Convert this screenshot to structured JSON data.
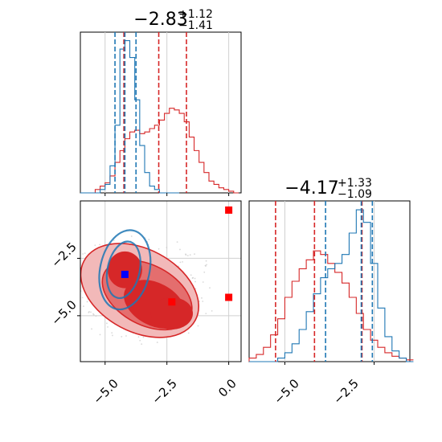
{
  "chart_data": {
    "type": "corner",
    "colors": {
      "red": "#d62728",
      "blue": "#1f77b4",
      "grid": "#d0d0d0",
      "light_red": "#f2b9b9",
      "mid_red": "#e46e6e"
    },
    "panels": {
      "hist_x": {
        "title": {
          "main": "−2.83",
          "sup": "+1.12",
          "sub": "−1.41"
        },
        "xlim": [
          -6.0,
          0.5
        ],
        "vlines": {
          "red": [
            -4.24,
            -2.83,
            -1.71
          ],
          "blue": [
            -4.6,
            -4.2,
            -3.75
          ]
        },
        "series": [
          {
            "name": "",
            "color": "#d62728",
            "x": [
              -6.0,
              -5.8,
              -5.6,
              -5.4,
              -5.2,
              -5.0,
              -4.8,
              -4.6,
              -4.4,
              -4.2,
              -4.0,
              -3.8,
              -3.6,
              -3.4,
              -3.2,
              -3.0,
              -2.8,
              -2.6,
              -2.4,
              -2.2,
              -2.0,
              -1.8,
              -1.6,
              -1.4,
              -1.2,
              -1.0,
              -0.8,
              -0.6,
              -0.4,
              -0.2,
              0.0,
              0.2
            ],
            "y": [
              0.0,
              0.0,
              0.0,
              0.02,
              0.04,
              0.06,
              0.1,
              0.18,
              0.25,
              0.32,
              0.36,
              0.37,
              0.35,
              0.36,
              0.38,
              0.4,
              0.43,
              0.47,
              0.5,
              0.49,
              0.47,
              0.42,
              0.33,
              0.25,
              0.18,
              0.12,
              0.07,
              0.05,
              0.03,
              0.02,
              0.01,
              0.0
            ]
          },
          {
            "name": "",
            "color": "#1f77b4",
            "x": [
              -6.0,
              -5.8,
              -5.6,
              -5.4,
              -5.2,
              -5.0,
              -4.8,
              -4.6,
              -4.4,
              -4.2,
              -4.0,
              -3.8,
              -3.6,
              -3.4,
              -3.2,
              -3.0,
              -2.8,
              -2.6,
              -2.4,
              -2.2
            ],
            "y": [
              0.0,
              0.0,
              0.0,
              0.0,
              0.02,
              0.05,
              0.16,
              0.4,
              0.85,
              0.9,
              0.8,
              0.55,
              0.28,
              0.12,
              0.04,
              0.02,
              0.0,
              0.0,
              0.0,
              0.0
            ]
          }
        ]
      },
      "hist_y": {
        "title": {
          "main": "−4.17",
          "sup": "+1.33",
          "sub": "−1.09"
        },
        "xlim": [
          -6.0,
          -1.5
        ],
        "vlines": {
          "red": [
            -5.26,
            -4.17,
            -2.84
          ],
          "blue": [
            -3.86,
            -2.86,
            -2.55
          ]
        },
        "series": [
          {
            "name": "",
            "color": "#d62728",
            "x": [
              -6.0,
              -5.8,
              -5.6,
              -5.4,
              -5.2,
              -5.0,
              -4.8,
              -4.6,
              -4.4,
              -4.2,
              -4.0,
              -3.8,
              -3.6,
              -3.4,
              -3.2,
              -3.0,
              -2.8,
              -2.6,
              -2.4,
              -2.2,
              -2.0,
              -1.8,
              -1.6
            ],
            "y": [
              0.02,
              0.04,
              0.08,
              0.15,
              0.24,
              0.36,
              0.45,
              0.52,
              0.57,
              0.62,
              0.6,
              0.55,
              0.5,
              0.44,
              0.36,
              0.27,
              0.18,
              0.12,
              0.08,
              0.05,
              0.03,
              0.02,
              0.01
            ]
          },
          {
            "name": "",
            "color": "#1f77b4",
            "x": [
              -6.0,
              -5.8,
              -5.6,
              -5.4,
              -5.2,
              -5.0,
              -4.8,
              -4.6,
              -4.4,
              -4.2,
              -4.0,
              -3.8,
              -3.6,
              -3.4,
              -3.2,
              -3.0,
              -2.8,
              -2.6,
              -2.4,
              -2.2,
              -2.0,
              -1.8,
              -1.6
            ],
            "y": [
              0.0,
              0.0,
              0.0,
              0.0,
              0.02,
              0.05,
              0.1,
              0.18,
              0.28,
              0.38,
              0.47,
              0.52,
              0.55,
              0.6,
              0.72,
              0.85,
              0.78,
              0.55,
              0.3,
              0.14,
              0.06,
              0.02,
              0.0
            ]
          }
        ]
      },
      "joint": {
        "xlim": [
          -6.0,
          0.5
        ],
        "ylim": [
          -7.0,
          0.0
        ],
        "red_contours": [
          {
            "level": "outer",
            "cx": -3.6,
            "cy": -3.9,
            "rx": 2.55,
            "ry": 1.8,
            "tilt_deg": 28
          },
          {
            "level": "middle",
            "cx": -3.3,
            "cy": -4.1,
            "rx": 1.95,
            "ry": 1.3,
            "tilt_deg": 28
          },
          {
            "level": "inner",
            "cx": -3.0,
            "cy": -4.5,
            "rx": 1.3,
            "ry": 0.9,
            "tilt_deg": 28
          }
        ],
        "red_core": [
          {
            "cx": -4.2,
            "cy": -3.0,
            "rx": 0.7,
            "ry": 0.8
          },
          {
            "cx": -2.3,
            "cy": -4.9,
            "rx": 0.85,
            "ry": 0.7
          }
        ],
        "blue_contours": [
          {
            "level": "outer",
            "cx": -4.2,
            "cy": -3.0,
            "rx": 1.0,
            "ry": 1.75,
            "tilt_deg": 12
          },
          {
            "level": "inner",
            "cx": -4.25,
            "cy": -3.0,
            "rx": 0.65,
            "ry": 1.25,
            "tilt_deg": 12
          }
        ],
        "markers": [
          {
            "color": "#0000ff",
            "x": -4.2,
            "y": -3.2
          },
          {
            "color": "#ff0000",
            "x": -2.3,
            "y": -4.4
          },
          {
            "color": "#ff0000",
            "x": 0.0,
            "y": -0.4
          },
          {
            "color": "#ff0000",
            "x": 0.0,
            "y": -4.2
          }
        ],
        "xticks": [
          -5.0,
          -2.5,
          0.0
        ],
        "yticks": [
          -2.5,
          -5.0
        ]
      }
    },
    "tick_labels": {
      "joint_x": [
        "−5.0",
        "−2.5",
        "0.0"
      ],
      "joint_y": [
        "−2.5",
        "−5.0"
      ],
      "hist_y_x": [
        "−5.0",
        "−2.5"
      ]
    }
  }
}
